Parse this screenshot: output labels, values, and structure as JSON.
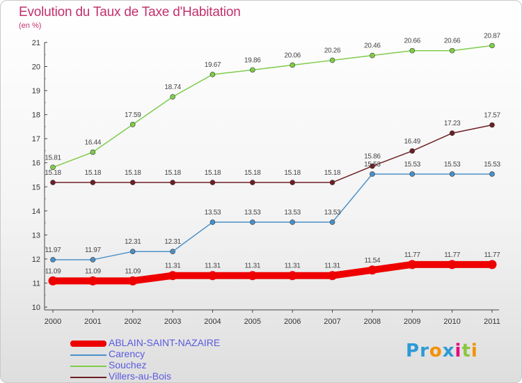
{
  "title": "Evolution du Taux de Taxe d'Habitation",
  "subtitle": "(en %)",
  "logo": {
    "text": "Proxiti",
    "letters": [
      "P",
      "r",
      "o",
      "x",
      "i",
      "t",
      "i"
    ],
    "colors": [
      "#2d9ad6",
      "#2d9ad6",
      "#f39200",
      "#2d9ad6",
      "#e6007e",
      "#8cc63f",
      "#f39200"
    ]
  },
  "chart_data": {
    "type": "line",
    "title": "Evolution du Taux de Taxe d'Habitation",
    "ylabel": "(en %)",
    "x": [
      "2000",
      "2001",
      "2002",
      "2003",
      "2004",
      "2005",
      "2006",
      "2007",
      "2008",
      "2009",
      "2010",
      "2011"
    ],
    "ylim": [
      10,
      21
    ],
    "yticks": [
      10,
      11,
      12,
      13,
      14,
      15,
      16,
      17,
      18,
      19,
      20,
      21
    ],
    "grid": false,
    "legend_position": "bottom-left",
    "series": [
      {
        "name": "ABLAIN-SAINT-NAZAIRE",
        "color": "#ee0000",
        "width": "thick",
        "values": [
          11.09,
          11.09,
          11.09,
          11.31,
          11.31,
          11.31,
          11.31,
          11.31,
          11.54,
          11.77,
          11.77,
          11.77
        ],
        "labels": [
          "11.09",
          "11.09",
          "11.09",
          "11.31",
          "11.31",
          "11.31",
          "11.31",
          "11.31",
          "11.54",
          "11.77",
          "11.77",
          "11.77"
        ]
      },
      {
        "name": "Carency",
        "color": "#4a90c8",
        "width": "thin",
        "values": [
          11.97,
          11.97,
          12.31,
          12.31,
          13.53,
          13.53,
          13.53,
          13.53,
          15.53,
          15.53,
          15.53,
          15.53
        ],
        "labels": [
          "11.97",
          "11.97",
          "12.31",
          "12.31",
          "13.53",
          "13.53",
          "13.53",
          "13.53",
          "15.53",
          "15.53",
          "15.53",
          "15.53"
        ]
      },
      {
        "name": "Souchez",
        "color": "#7fcc4a",
        "width": "thin",
        "values": [
          15.81,
          16.44,
          17.59,
          18.74,
          19.67,
          19.86,
          20.06,
          20.26,
          20.46,
          20.66,
          20.66,
          20.87
        ],
        "labels": [
          "15.81",
          "16.44",
          "17.59",
          "18.74",
          "19.67",
          "19.86",
          "20.06",
          "20.26",
          "20.46",
          "20.66",
          "20.66",
          "20.87"
        ]
      },
      {
        "name": "Villers-au-Bois",
        "color": "#6e1f24",
        "width": "thin",
        "values": [
          15.18,
          15.18,
          15.18,
          15.18,
          15.18,
          15.18,
          15.18,
          15.18,
          15.86,
          16.49,
          17.23,
          17.57
        ],
        "labels": [
          "15.18",
          "15.18",
          "15.18",
          "15.18",
          "15.18",
          "15.18",
          "15.18",
          "15.18",
          "15.86",
          "16.49",
          "17.23",
          "17.57"
        ]
      }
    ]
  }
}
